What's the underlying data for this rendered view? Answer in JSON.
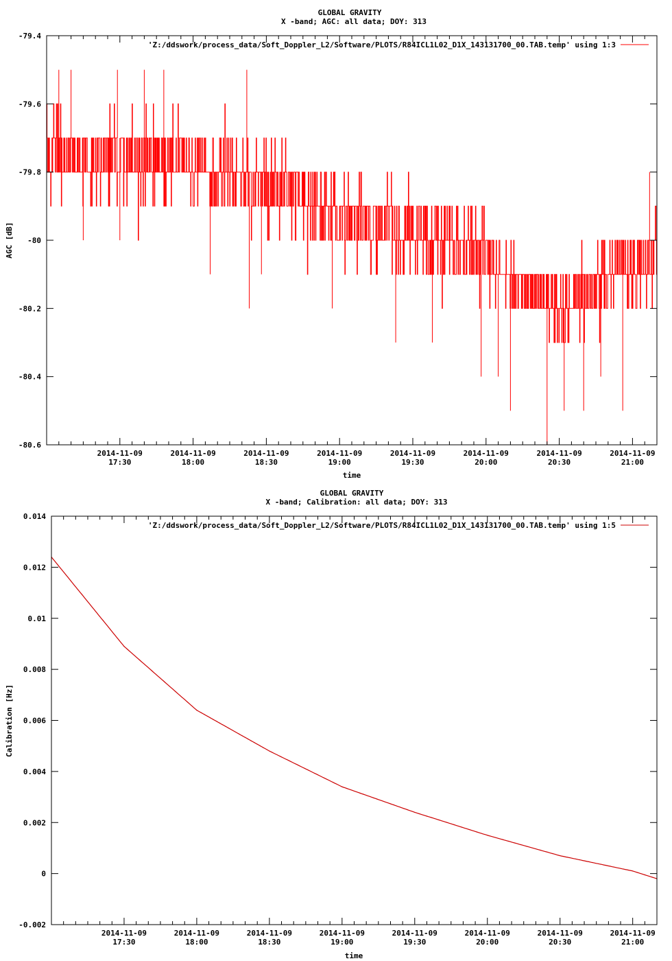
{
  "chart_data": [
    {
      "type": "line",
      "title": "GLOBAL GRAVITY",
      "subtitle": "X -band; AGC: all data; DOY: 313",
      "xlabel": "time",
      "ylabel": "AGC [dB]",
      "ylim": [
        -80.6,
        -79.4
      ],
      "yticks": [
        -79.4,
        -79.6,
        -79.8,
        -80,
        -80.2,
        -80.4,
        -80.6
      ],
      "ytick_labels": [
        "-79.4",
        "-79.6",
        "-79.8",
        "-80",
        "-80.2",
        "-80.4",
        "-80.6"
      ],
      "xlim": [
        "2014-11-09 17:00",
        "2014-11-09 21:10"
      ],
      "xticks": [
        "2014-11-09 17:30",
        "2014-11-09 18:00",
        "2014-11-09 18:30",
        "2014-11-09 19:00",
        "2014-11-09 19:30",
        "2014-11-09 20:00",
        "2014-11-09 20:30",
        "2014-11-09 21:00"
      ],
      "xtick_dates": [
        "2014-11-09",
        "2014-11-09",
        "2014-11-09",
        "2014-11-09",
        "2014-11-09",
        "2014-11-09",
        "2014-11-09",
        "2014-11-09"
      ],
      "xtick_times": [
        "17:30",
        "18:00",
        "18:30",
        "19:00",
        "19:30",
        "20:00",
        "20:30",
        "21:00"
      ],
      "grid": false,
      "legend_position": "top-right",
      "series": [
        {
          "name": "'Z:/ddswork/process_data/Soft_Doppler_L2/Software/PLOTS/R84ICL1L02_D1X_143131700_00.TAB.temp' using 1:3",
          "color": "#ff0000",
          "style": "impulses",
          "trend": {
            "x": [
              "2014-11-09 17:00",
              "2014-11-09 17:30",
              "2014-11-09 18:00",
              "2014-11-09 18:30",
              "2014-11-09 19:00",
              "2014-11-09 19:30",
              "2014-11-09 20:00",
              "2014-11-09 20:30",
              "2014-11-09 21:00",
              "2014-11-09 21:10"
            ],
            "y": [
              -79.75,
              -79.75,
              -79.78,
              -79.85,
              -79.92,
              -79.98,
              -80.05,
              -80.2,
              -80.08,
              -80.05
            ]
          },
          "quantization": 0.1,
          "noise_sd": 0.06,
          "spikes": [
            {
              "x": "2014-11-09 17:00",
              "y": -79.5
            },
            {
              "x": "2014-11-09 17:05",
              "y": -79.5
            },
            {
              "x": "2014-11-09 17:10",
              "y": -79.5
            },
            {
              "x": "2014-11-09 17:15",
              "y": -80.0
            },
            {
              "x": "2014-11-09 17:29",
              "y": -79.5
            },
            {
              "x": "2014-11-09 17:30",
              "y": -80.0
            },
            {
              "x": "2014-11-09 17:40",
              "y": -79.5
            },
            {
              "x": "2014-11-09 17:48",
              "y": -79.5
            },
            {
              "x": "2014-11-09 18:07",
              "y": -80.1
            },
            {
              "x": "2014-11-09 18:22",
              "y": -79.5
            },
            {
              "x": "2014-11-09 18:23",
              "y": -80.2
            },
            {
              "x": "2014-11-09 18:28",
              "y": -80.1
            },
            {
              "x": "2014-11-09 18:57",
              "y": -80.2
            },
            {
              "x": "2014-11-09 19:23",
              "y": -80.3
            },
            {
              "x": "2014-11-09 19:38",
              "y": -80.3
            },
            {
              "x": "2014-11-09 19:58",
              "y": -80.4
            },
            {
              "x": "2014-11-09 20:05",
              "y": -80.4
            },
            {
              "x": "2014-11-09 20:10",
              "y": -80.5
            },
            {
              "x": "2014-11-09 20:25",
              "y": -80.6
            },
            {
              "x": "2014-11-09 20:32",
              "y": -80.5
            },
            {
              "x": "2014-11-09 20:40",
              "y": -80.5
            },
            {
              "x": "2014-11-09 20:47",
              "y": -80.4
            },
            {
              "x": "2014-11-09 20:56",
              "y": -80.5
            },
            {
              "x": "2014-11-09 21:07",
              "y": -79.8
            }
          ]
        }
      ]
    },
    {
      "type": "line",
      "title": "GLOBAL GRAVITY",
      "subtitle": "X -band; Calibration: all data; DOY: 313",
      "xlabel": "time",
      "ylabel": "Calibration [Hz]",
      "ylim": [
        -0.002,
        0.014
      ],
      "yticks": [
        0.014,
        0.012,
        0.01,
        0.008,
        0.006,
        0.004,
        0.002,
        0,
        -0.002
      ],
      "ytick_labels": [
        "0.014",
        "0.012",
        "0.01",
        "0.008",
        "0.006",
        "0.004",
        "0.002",
        "0",
        "-0.002"
      ],
      "xlim": [
        "2014-11-09 17:00",
        "2014-11-09 21:10"
      ],
      "xticks": [
        "2014-11-09 17:30",
        "2014-11-09 18:00",
        "2014-11-09 18:30",
        "2014-11-09 19:00",
        "2014-11-09 19:30",
        "2014-11-09 20:00",
        "2014-11-09 20:30",
        "2014-11-09 21:00"
      ],
      "xtick_dates": [
        "2014-11-09",
        "2014-11-09",
        "2014-11-09",
        "2014-11-09",
        "2014-11-09",
        "2014-11-09",
        "2014-11-09",
        "2014-11-09"
      ],
      "xtick_times": [
        "17:30",
        "18:00",
        "18:30",
        "19:00",
        "19:30",
        "20:00",
        "20:30",
        "21:00"
      ],
      "grid": false,
      "legend_position": "top-right",
      "series": [
        {
          "name": "'Z:/ddswork/process_data/Soft_Doppler_L2/Software/PLOTS/R84ICL1L02_D1X_143131700_00.TAB.temp' using 1:5",
          "color": "#cc0000",
          "style": "lines",
          "x": [
            "2014-11-09 17:00",
            "2014-11-09 17:30",
            "2014-11-09 18:00",
            "2014-11-09 18:30",
            "2014-11-09 19:00",
            "2014-11-09 19:30",
            "2014-11-09 20:00",
            "2014-11-09 20:30",
            "2014-11-09 21:00",
            "2014-11-09 21:10"
          ],
          "y": [
            0.0124,
            0.0089,
            0.0064,
            0.0048,
            0.0034,
            0.0024,
            0.0015,
            0.0007,
            0.0001,
            -0.0002
          ]
        }
      ]
    }
  ]
}
